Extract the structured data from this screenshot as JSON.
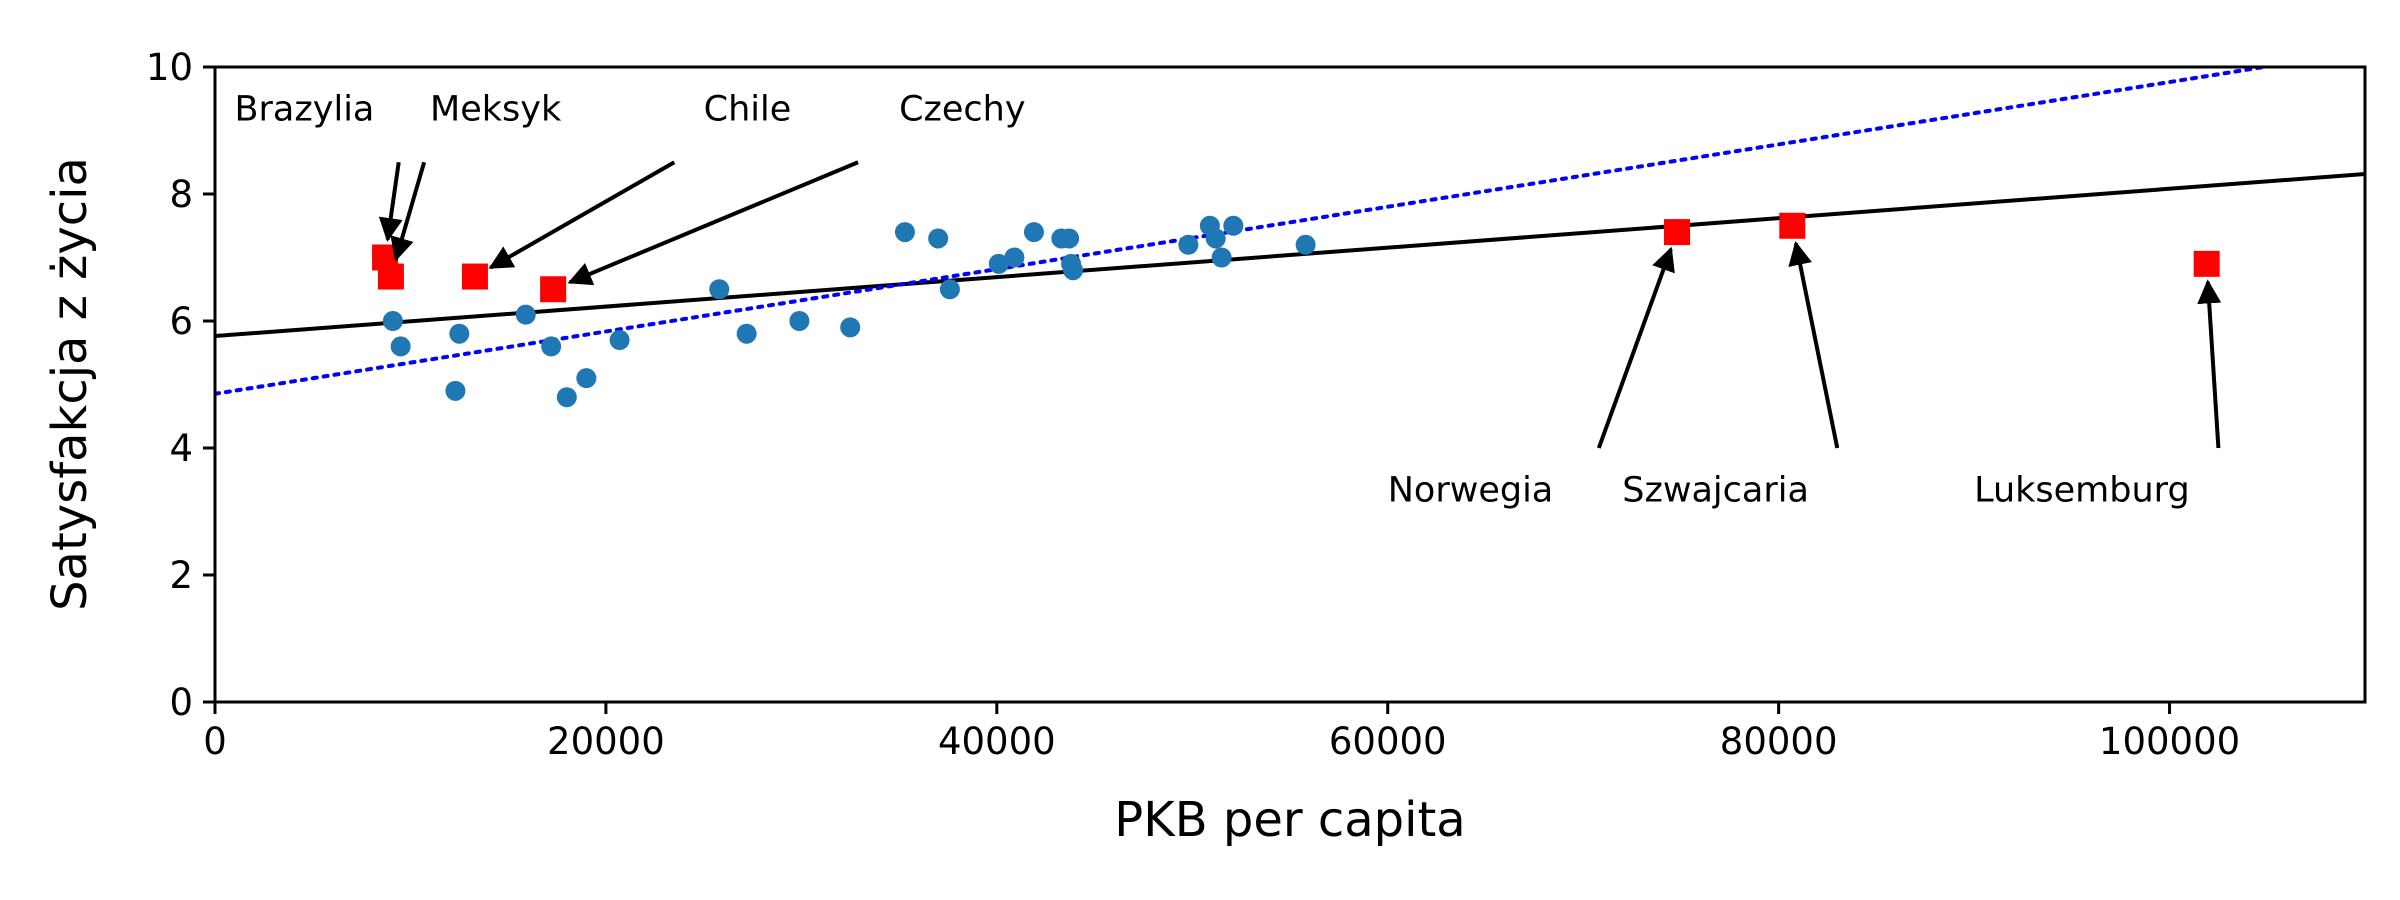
{
  "chart_data": {
    "type": "scatter",
    "title": "",
    "xlabel": "PKB per capita",
    "ylabel": "Satysfakcja z życia",
    "xlim": [
      0,
      110000
    ],
    "ylim": [
      0,
      10
    ],
    "x_ticks": [
      0,
      20000,
      40000,
      60000,
      80000,
      100000
    ],
    "y_ticks": [
      0,
      2,
      4,
      6,
      8,
      10
    ],
    "grid": false,
    "legend": "none",
    "colors": {
      "points": "#1f77b4",
      "highlight": "#ff0000",
      "solid_line": "#000000",
      "dotted_line": "#0000ff"
    },
    "points": [
      {
        "x": 9100,
        "y": 6.0
      },
      {
        "x": 9500,
        "y": 5.6
      },
      {
        "x": 12300,
        "y": 4.9
      },
      {
        "x": 12500,
        "y": 5.8
      },
      {
        "x": 15900,
        "y": 6.1
      },
      {
        "x": 17200,
        "y": 5.6
      },
      {
        "x": 18000,
        "y": 4.8
      },
      {
        "x": 19000,
        "y": 5.1
      },
      {
        "x": 20700,
        "y": 5.7
      },
      {
        "x": 25800,
        "y": 6.5
      },
      {
        "x": 27200,
        "y": 5.8
      },
      {
        "x": 29900,
        "y": 6.0
      },
      {
        "x": 32500,
        "y": 5.9
      },
      {
        "x": 35300,
        "y": 7.4
      },
      {
        "x": 37000,
        "y": 7.3
      },
      {
        "x": 37600,
        "y": 6.5
      },
      {
        "x": 40100,
        "y": 6.9
      },
      {
        "x": 40900,
        "y": 7.0
      },
      {
        "x": 41900,
        "y": 7.4
      },
      {
        "x": 43300,
        "y": 7.3
      },
      {
        "x": 43700,
        "y": 7.3
      },
      {
        "x": 43800,
        "y": 6.9
      },
      {
        "x": 43900,
        "y": 6.8
      },
      {
        "x": 49800,
        "y": 7.2
      },
      {
        "x": 50900,
        "y": 7.5
      },
      {
        "x": 51200,
        "y": 7.3
      },
      {
        "x": 51500,
        "y": 7.0
      },
      {
        "x": 52100,
        "y": 7.5
      },
      {
        "x": 55800,
        "y": 7.2
      }
    ],
    "highlighted": [
      {
        "name": "Brazylia",
        "x": 8700,
        "y": 7.0,
        "text_x": 1000,
        "text_y": 9.0,
        "arrow_start_x": 9400,
        "arrow_start_y": 8.5
      },
      {
        "name": "Meksyk",
        "x": 9000,
        "y": 6.7,
        "text_x": 11000,
        "text_y": 9.0,
        "arrow_start_x": 10700,
        "arrow_start_y": 8.5
      },
      {
        "name": "Chile",
        "x": 13300,
        "y": 6.7,
        "text_x": 25000,
        "text_y": 9.0,
        "arrow_start_x": 23500,
        "arrow_start_y": 8.5
      },
      {
        "name": "Czechy",
        "x": 17300,
        "y": 6.5,
        "text_x": 35000,
        "text_y": 9.0,
        "arrow_start_x": 32900,
        "arrow_start_y": 8.5
      },
      {
        "name": "Norwegia",
        "x": 74800,
        "y": 7.4,
        "text_x": 60000,
        "text_y": 3.0,
        "arrow_start_x": 70800,
        "arrow_start_y": 4.0
      },
      {
        "name": "Szwajcaria",
        "x": 80700,
        "y": 7.5,
        "text_x": 72000,
        "text_y": 3.0,
        "arrow_start_x": 83000,
        "arrow_start_y": 4.0
      },
      {
        "name": "Luksemburg",
        "x": 101900,
        "y": 6.9,
        "text_x": 90000,
        "text_y": 3.0,
        "arrow_start_x": 102500,
        "arrow_start_y": 4.0
      }
    ],
    "lines": [
      {
        "style": "solid",
        "intercept": 5.763,
        "slope": 2.32e-05
      },
      {
        "style": "dotted",
        "intercept": 4.853,
        "slope": 4.91e-05
      }
    ]
  }
}
